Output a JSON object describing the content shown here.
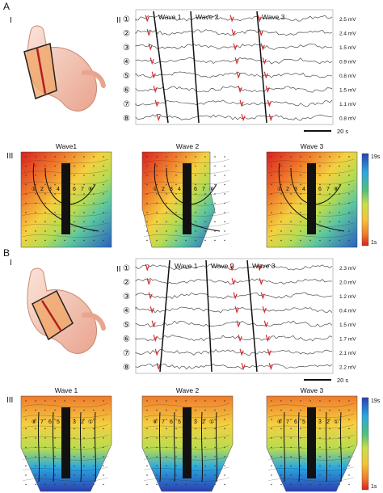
{
  "panels": [
    {
      "label": "A",
      "sub_labels": [
        "I",
        "II",
        "III"
      ],
      "channels": [
        "①",
        "②",
        "③",
        "④",
        "⑤",
        "⑥",
        "⑦",
        "⑧"
      ],
      "amplitudes": [
        "2.5 mV",
        "2.4 mV",
        "1.5 mV",
        "0.9 mV",
        "0.8 mV",
        "1.5 mV",
        "1.1 mV",
        "0.8 mV"
      ],
      "wave_labels": [
        "Wave 1",
        "Wave 2",
        "Wave 3"
      ],
      "map_titles": [
        "Wave1",
        "Wave 2",
        "Wave 3"
      ],
      "electrode_rows": [
        [
          "①",
          "2",
          "3",
          "4",
          "5",
          "6",
          "7",
          "⑧"
        ],
        [
          "①",
          "2",
          "3",
          "4",
          "5",
          "6",
          "7",
          "⑧"
        ],
        [
          "①",
          "2",
          "3",
          "4",
          "5",
          "6",
          "7",
          "⑧"
        ]
      ],
      "scale_bar": "20 s",
      "colorbar": {
        "top": "19s",
        "bottom": "1s"
      }
    },
    {
      "label": "B",
      "sub_labels": [
        "I",
        "II",
        "III"
      ],
      "channels": [
        "①",
        "②",
        "③",
        "④",
        "⑤",
        "⑥",
        "⑦",
        "⑧"
      ],
      "amplitudes": [
        "2.3 mV",
        "2.0 mV",
        "1.2 mV",
        "0.4 mV",
        "1.5 mV",
        "1.7 mV",
        "2.1 mV",
        "2.2 mV"
      ],
      "wave_labels": [
        "Wave 1",
        "Wave 2",
        "Wave 3"
      ],
      "map_titles": [
        "Wave 1",
        "Wave 2",
        "Wave 3"
      ],
      "electrode_rows": [
        [
          "⑧",
          "7",
          "6",
          "5",
          "4",
          "3",
          "2",
          "①"
        ],
        [
          "⑧",
          "7",
          "6",
          "5",
          "4",
          "3",
          "2",
          "①"
        ],
        [
          "⑧",
          "7",
          "6",
          "5",
          "4",
          "3",
          "2",
          "①"
        ]
      ],
      "scale_bar": "20 s",
      "colorbar": {
        "top": "19s",
        "bottom": "1s"
      }
    }
  ]
}
